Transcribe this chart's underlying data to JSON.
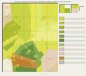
{
  "bg_color": "#f0f0e8",
  "map_border": "#333333",
  "title_text": "Preliminary Geologic Map of the Dalies Northwest Quadrangle, Bernalillo County, New Mexico",
  "map_colors": {
    "dominant_yellow": "#dde050",
    "yellow_green": "#c8d445",
    "bright_yellow": "#e8e855",
    "olive": "#b0bc30",
    "light_yellow": "#e0e870",
    "pale_yellow": "#ecec88",
    "green_medium": "#88aa50",
    "green_dark": "#6a9040",
    "green_pale": "#b8c870",
    "green_bright": "#a0b838",
    "tan": "#e0c8a0",
    "pink_tan": "#e8d0b8",
    "pink_light": "#eeddc8",
    "orange": "#d89040",
    "orange_brown": "#c07828",
    "gray": "#c8c8b8",
    "white": "#f8f6f0",
    "cream": "#f0ead8"
  },
  "legend_colors_top": [
    "#c8d445",
    "#dde050",
    "#b8c870"
  ],
  "legend_colors_right": [
    "#dde050",
    "#c8d445",
    "#b0bc30",
    "#a0b838",
    "#88aa50",
    "#6a9040",
    "#b8c870",
    "#e8d0b8",
    "#eeddc8",
    "#d89040",
    "#c8c8b8"
  ],
  "inset_colors": [
    [
      "#c8d445",
      "#dde050",
      "#b8c870",
      "#a0b838"
    ],
    [
      "#88aa50",
      "#e8d0b8"
    ]
  ],
  "bottom_bar": "#1a1a1a"
}
